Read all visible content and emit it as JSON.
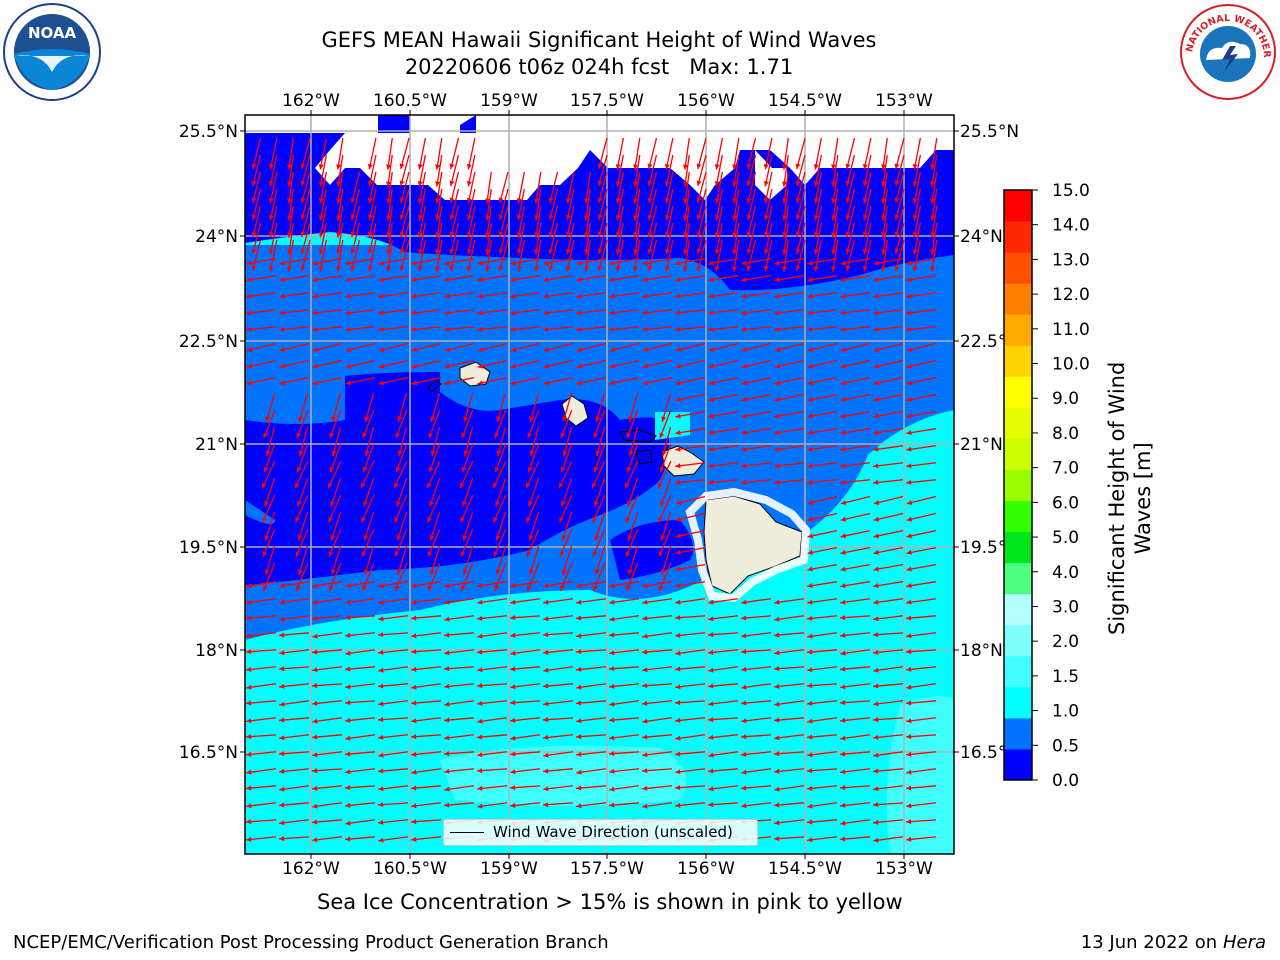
{
  "title_line1": "GEFS MEAN Hawaii Significant Height of Wind Waves",
  "title_date": "20220606 t06z 024h fcst",
  "title_max": "Max: 1.71",
  "lon_ticks": [
    "162°W",
    "160.5°W",
    "159°W",
    "157.5°W",
    "156°W",
    "154.5°W",
    "153°W"
  ],
  "lat_ticks_left": [
    "25.5°N",
    "24°N",
    "22.5°N",
    "21°N",
    "19.5°N",
    "18°N",
    "16.5°N"
  ],
  "lat_ticks_right": [
    "25.5°N",
    "24°N",
    "22.5°N",
    "21°N",
    "19.5°N",
    "18°N",
    "16.5°N"
  ],
  "colorbar": {
    "label": "Significant Height of Wind Waves [m]",
    "label_line1": "Significant Height of Wind",
    "label_line2": "Waves [m]",
    "ticks": [
      "15.0",
      "14.0",
      "13.0",
      "12.0",
      "11.0",
      "10.0",
      "9.0",
      "8.0",
      "7.0",
      "6.0",
      "5.0",
      "4.0",
      "3.0",
      "2.0",
      "1.5",
      "1.0",
      "0.5",
      "0.0"
    ],
    "colors": [
      "#0000ff",
      "#0073ff",
      "#00ffff",
      "#40ffff",
      "#80ffff",
      "#b4ffff",
      "#4dff80",
      "#00e61a",
      "#33ff00",
      "#99ff00",
      "#ccff00",
      "#e6ff00",
      "#ffff00",
      "#ffd200",
      "#ffaa00",
      "#ff8000",
      "#ff5000",
      "#ff2800",
      "#ff0000"
    ]
  },
  "legend": {
    "text": "Wind Wave Direction (unscaled)"
  },
  "note": "Sea Ice Concentration > 15% is shown in pink to yellow",
  "footer_left": "NCEP/EMC/Verification Post Processing Product Generation Branch",
  "footer_date": "13 Jun 2022 on",
  "footer_host": "Hera",
  "logos": {
    "noaa": "NOAA",
    "nws": "NATIONAL WEATHER SERVICE"
  },
  "colors": {
    "land": "#efeedc",
    "arrow": "#ff0000",
    "grid": "#b0b0b0"
  }
}
